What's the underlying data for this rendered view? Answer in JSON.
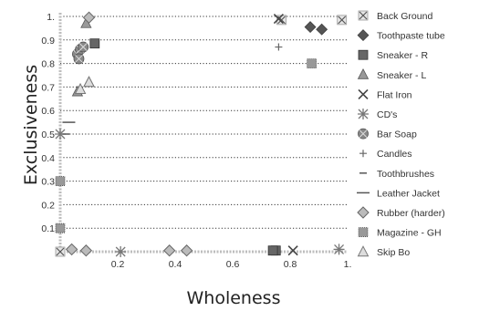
{
  "chart_data": {
    "type": "scatter",
    "xlabel": "Wholeness",
    "ylabel": "Exclusiveness",
    "xlim": [
      0,
      1
    ],
    "ylim": [
      0,
      1
    ],
    "x_ticks": [
      "0.2",
      "0.4",
      "0.6",
      "0.8",
      "1."
    ],
    "y_ticks": [
      "0.1",
      "0.2",
      "0.3",
      "0.4",
      "0.5",
      "0.6",
      "0.7",
      "0.8",
      "0.9",
      "1."
    ],
    "grid": "horizontal dotted",
    "legend_position": "right",
    "series": [
      {
        "name": "Back Ground",
        "marker": "x-box",
        "points": [
          [
            0.98,
            0.985
          ],
          [
            0.77,
            0.985
          ],
          [
            0.0,
            0.0
          ]
        ]
      },
      {
        "name": "Toothpaste tube",
        "marker": "diamond",
        "points": [
          [
            0.87,
            0.955
          ],
          [
            0.91,
            0.945
          ]
        ]
      },
      {
        "name": "Sneaker - R",
        "marker": "square",
        "points": [
          [
            0.12,
            0.885
          ],
          [
            0.75,
            0.005
          ],
          [
            0.74,
            0.005
          ]
        ]
      },
      {
        "name": "Sneaker - L",
        "marker": "triangle",
        "points": [
          [
            0.09,
            0.97
          ],
          [
            0.1,
            0.72
          ],
          [
            0.06,
            0.68
          ]
        ]
      },
      {
        "name": "Flat Iron",
        "marker": "x",
        "points": [
          [
            0.76,
            0.99
          ],
          [
            0.81,
            0.005
          ]
        ]
      },
      {
        "name": "CD's",
        "marker": "star",
        "points": [
          [
            0.21,
            0.0
          ],
          [
            0.97,
            0.01
          ],
          [
            0.0,
            0.5
          ]
        ]
      },
      {
        "name": "Bar Soap",
        "marker": "burst",
        "points": [
          [
            0.06,
            0.84
          ],
          [
            0.07,
            0.86
          ],
          [
            0.065,
            0.82
          ],
          [
            0.08,
            0.87
          ]
        ]
      },
      {
        "name": "Candles",
        "marker": "plus",
        "points": [
          [
            0.76,
            0.87
          ]
        ]
      },
      {
        "name": "Toothbrushes",
        "marker": "dash",
        "points": [
          [
            0.02,
            0.5
          ]
        ]
      },
      {
        "name": "Leather Jacket",
        "marker": "long-dash",
        "points": [
          [
            0.03,
            0.55
          ]
        ]
      },
      {
        "name": "Rubber (harder)",
        "marker": "diamond-open",
        "points": [
          [
            0.1,
            0.995
          ],
          [
            0.38,
            0.005
          ],
          [
            0.44,
            0.005
          ],
          [
            0.09,
            0.005
          ],
          [
            0.04,
            0.01
          ]
        ]
      },
      {
        "name": "Magazine - GH",
        "marker": "square-dotted",
        "points": [
          [
            0.875,
            0.8
          ],
          [
            0.0,
            0.1
          ],
          [
            0.0,
            0.3
          ]
        ]
      },
      {
        "name": "Skip Bo",
        "marker": "triangle-open",
        "points": [
          [
            0.1,
            0.72
          ],
          [
            0.07,
            0.69
          ]
        ]
      }
    ]
  }
}
